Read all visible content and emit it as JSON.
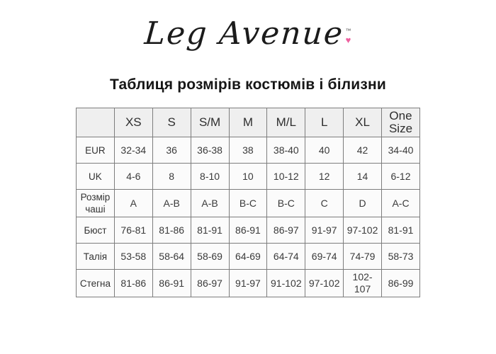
{
  "logo": {
    "text": "Leg Avenue",
    "trademark": "™",
    "heart": "♥",
    "heart_color": "#ee5f9f"
  },
  "title": "Таблиця розмірів костюмів і білизни",
  "table": {
    "header": [
      "",
      "XS",
      "S",
      "S/M",
      "M",
      "M/L",
      "L",
      "XL",
      "One Size"
    ],
    "rows": [
      {
        "label": "EUR",
        "values": [
          "32-34",
          "36",
          "36-38",
          "38",
          "38-40",
          "40",
          "42",
          "34-40"
        ]
      },
      {
        "label": "UK",
        "values": [
          "4-6",
          "8",
          "8-10",
          "10",
          "10-12",
          "12",
          "14",
          "6-12"
        ]
      },
      {
        "label": "Розмір чаші",
        "values": [
          "A",
          "A-B",
          "A-B",
          "B-C",
          "B-C",
          "C",
          "D",
          "A-C"
        ]
      },
      {
        "label": "Бюст",
        "values": [
          "76-81",
          "81-86",
          "81-91",
          "86-91",
          "86-97",
          "91-97",
          "97-102",
          "81-91"
        ]
      },
      {
        "label": "Талія",
        "values": [
          "53-58",
          "58-64",
          "58-69",
          "64-69",
          "64-74",
          "69-74",
          "74-79",
          "58-73"
        ]
      },
      {
        "label": "Стегна",
        "values": [
          "81-86",
          "86-91",
          "86-97",
          "91-97",
          "91-102",
          "97-102",
          "102-107",
          "86-99"
        ]
      }
    ]
  },
  "colors": {
    "background": "#ffffff",
    "table_border": "#7d7d7d",
    "header_bg": "#efefef",
    "cell_bg": "#fbfbfb",
    "text": "#333333",
    "heart_pink": "#ee5f9f"
  }
}
